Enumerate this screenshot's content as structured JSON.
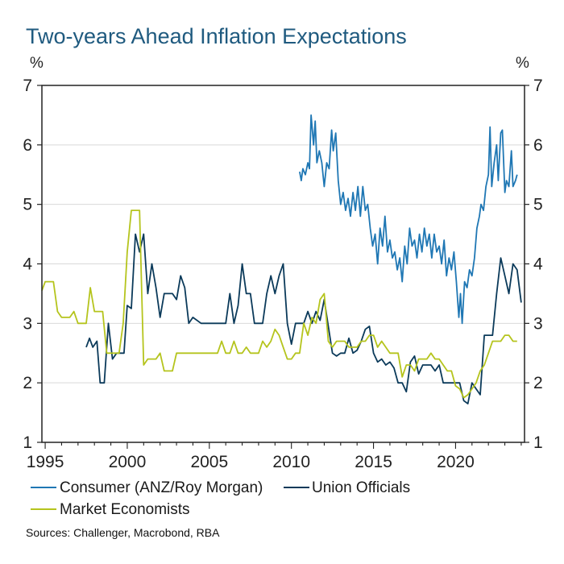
{
  "chart_data": {
    "type": "line",
    "title": "Two-years Ahead Inflation Expectations",
    "left_unit": "%",
    "right_unit": "%",
    "x_range": [
      1994.8,
      2024.2
    ],
    "y_range": [
      1,
      7
    ],
    "y_ticks": [
      1,
      2,
      3,
      4,
      5,
      6,
      7
    ],
    "x_ticks": [
      1995,
      2000,
      2005,
      2010,
      2015,
      2020
    ],
    "grid": true,
    "legend_position": "bottom",
    "source": "Sources: Challenger, Macrobond, RBA",
    "colors": {
      "Consumer (ANZ/Roy Morgan)": "#1f77b4",
      "Union Officials": "#0b3a5a",
      "Market Economists": "#b5c41d",
      "grid": "#d9d9d9",
      "axis": "#222222"
    },
    "series": [
      {
        "name": "Consumer (ANZ/Roy Morgan)",
        "points": [
          [
            2010.5,
            5.55
          ],
          [
            2010.6,
            5.4
          ],
          [
            2010.7,
            5.6
          ],
          [
            2010.85,
            5.5
          ],
          [
            2011.0,
            5.7
          ],
          [
            2011.1,
            5.6
          ],
          [
            2011.2,
            6.5
          ],
          [
            2011.35,
            6.0
          ],
          [
            2011.45,
            6.4
          ],
          [
            2011.55,
            5.7
          ],
          [
            2011.7,
            5.9
          ],
          [
            2011.85,
            5.7
          ],
          [
            2012.0,
            5.3
          ],
          [
            2012.15,
            5.7
          ],
          [
            2012.3,
            5.6
          ],
          [
            2012.45,
            6.25
          ],
          [
            2012.55,
            5.9
          ],
          [
            2012.7,
            6.2
          ],
          [
            2012.85,
            5.4
          ],
          [
            2013.0,
            5.0
          ],
          [
            2013.15,
            5.2
          ],
          [
            2013.3,
            4.9
          ],
          [
            2013.45,
            5.1
          ],
          [
            2013.6,
            4.8
          ],
          [
            2013.75,
            5.2
          ],
          [
            2013.9,
            4.9
          ],
          [
            2014.05,
            5.3
          ],
          [
            2014.2,
            4.8
          ],
          [
            2014.35,
            5.3
          ],
          [
            2014.5,
            4.9
          ],
          [
            2014.65,
            5.0
          ],
          [
            2014.8,
            4.6
          ],
          [
            2014.95,
            4.3
          ],
          [
            2015.1,
            4.5
          ],
          [
            2015.25,
            4.0
          ],
          [
            2015.4,
            4.6
          ],
          [
            2015.55,
            4.3
          ],
          [
            2015.7,
            4.8
          ],
          [
            2015.85,
            4.2
          ],
          [
            2016.0,
            4.4
          ],
          [
            2016.15,
            4.1
          ],
          [
            2016.3,
            4.2
          ],
          [
            2016.45,
            3.9
          ],
          [
            2016.6,
            4.1
          ],
          [
            2016.75,
            3.7
          ],
          [
            2016.9,
            4.3
          ],
          [
            2017.05,
            4.0
          ],
          [
            2017.2,
            4.6
          ],
          [
            2017.35,
            4.3
          ],
          [
            2017.5,
            4.4
          ],
          [
            2017.65,
            4.1
          ],
          [
            2017.8,
            4.5
          ],
          [
            2017.95,
            4.2
          ],
          [
            2018.1,
            4.6
          ],
          [
            2018.25,
            4.3
          ],
          [
            2018.4,
            4.5
          ],
          [
            2018.55,
            4.1
          ],
          [
            2018.7,
            4.5
          ],
          [
            2018.85,
            4.2
          ],
          [
            2019.0,
            4.3
          ],
          [
            2019.15,
            4.0
          ],
          [
            2019.3,
            4.4
          ],
          [
            2019.45,
            3.8
          ],
          [
            2019.6,
            4.1
          ],
          [
            2019.75,
            3.9
          ],
          [
            2019.9,
            4.2
          ],
          [
            2020.05,
            3.7
          ],
          [
            2020.2,
            3.1
          ],
          [
            2020.3,
            3.5
          ],
          [
            2020.4,
            3.0
          ],
          [
            2020.55,
            3.7
          ],
          [
            2020.7,
            3.6
          ],
          [
            2020.85,
            3.9
          ],
          [
            2021.0,
            3.8
          ],
          [
            2021.15,
            4.1
          ],
          [
            2021.3,
            4.6
          ],
          [
            2021.45,
            4.8
          ],
          [
            2021.55,
            5.0
          ],
          [
            2021.7,
            4.9
          ],
          [
            2021.85,
            5.3
          ],
          [
            2022.0,
            5.5
          ],
          [
            2022.1,
            6.3
          ],
          [
            2022.2,
            5.3
          ],
          [
            2022.35,
            5.7
          ],
          [
            2022.5,
            6.0
          ],
          [
            2022.6,
            5.4
          ],
          [
            2022.75,
            6.2
          ],
          [
            2022.85,
            6.25
          ],
          [
            2023.0,
            5.2
          ],
          [
            2023.1,
            5.4
          ],
          [
            2023.25,
            5.3
          ],
          [
            2023.4,
            5.9
          ],
          [
            2023.5,
            5.3
          ],
          [
            2023.65,
            5.4
          ],
          [
            2023.75,
            5.5
          ]
        ]
      },
      {
        "name": "Union Officials",
        "points": [
          [
            1997.5,
            2.6
          ],
          [
            1997.7,
            2.75
          ],
          [
            1997.9,
            2.6
          ],
          [
            1998.15,
            2.7
          ],
          [
            1998.35,
            2.0
          ],
          [
            1998.6,
            2.0
          ],
          [
            1998.85,
            3.0
          ],
          [
            1999.1,
            2.4
          ],
          [
            1999.35,
            2.5
          ],
          [
            1999.8,
            2.5
          ],
          [
            2000.0,
            3.3
          ],
          [
            2000.25,
            3.25
          ],
          [
            2000.5,
            4.5
          ],
          [
            2000.75,
            4.2
          ],
          [
            2001.0,
            4.5
          ],
          [
            2001.25,
            3.5
          ],
          [
            2001.5,
            4.0
          ],
          [
            2001.75,
            3.6
          ],
          [
            2002.0,
            3.1
          ],
          [
            2002.25,
            3.5
          ],
          [
            2002.75,
            3.5
          ],
          [
            2003.0,
            3.4
          ],
          [
            2003.25,
            3.8
          ],
          [
            2003.5,
            3.6
          ],
          [
            2003.75,
            3.0
          ],
          [
            2004.0,
            3.1
          ],
          [
            2004.5,
            3.0
          ],
          [
            2005.5,
            3.0
          ],
          [
            2006.0,
            3.0
          ],
          [
            2006.25,
            3.5
          ],
          [
            2006.5,
            3.0
          ],
          [
            2006.75,
            3.3
          ],
          [
            2007.0,
            4.0
          ],
          [
            2007.25,
            3.5
          ],
          [
            2007.5,
            3.5
          ],
          [
            2007.75,
            3.0
          ],
          [
            2008.25,
            3.0
          ],
          [
            2008.5,
            3.5
          ],
          [
            2008.75,
            3.8
          ],
          [
            2009.0,
            3.5
          ],
          [
            2009.25,
            3.8
          ],
          [
            2009.5,
            4.0
          ],
          [
            2009.75,
            3.0
          ],
          [
            2010.0,
            2.65
          ],
          [
            2010.25,
            3.0
          ],
          [
            2010.75,
            3.0
          ],
          [
            2011.0,
            3.2
          ],
          [
            2011.25,
            3.0
          ],
          [
            2011.5,
            3.2
          ],
          [
            2011.75,
            3.05
          ],
          [
            2012.0,
            3.4
          ],
          [
            2012.25,
            2.95
          ],
          [
            2012.5,
            2.5
          ],
          [
            2012.75,
            2.45
          ],
          [
            2013.0,
            2.5
          ],
          [
            2013.25,
            2.5
          ],
          [
            2013.5,
            2.75
          ],
          [
            2013.75,
            2.5
          ],
          [
            2014.0,
            2.55
          ],
          [
            2014.25,
            2.7
          ],
          [
            2014.5,
            2.9
          ],
          [
            2014.75,
            2.95
          ],
          [
            2015.0,
            2.5
          ],
          [
            2015.25,
            2.35
          ],
          [
            2015.5,
            2.4
          ],
          [
            2015.75,
            2.3
          ],
          [
            2016.0,
            2.35
          ],
          [
            2016.25,
            2.25
          ],
          [
            2016.5,
            2.0
          ],
          [
            2016.75,
            2.0
          ],
          [
            2017.0,
            1.85
          ],
          [
            2017.25,
            2.35
          ],
          [
            2017.5,
            2.45
          ],
          [
            2017.75,
            2.15
          ],
          [
            2018.0,
            2.3
          ],
          [
            2018.25,
            2.3
          ],
          [
            2018.5,
            2.3
          ],
          [
            2018.75,
            2.2
          ],
          [
            2019.0,
            2.3
          ],
          [
            2019.25,
            2.0
          ],
          [
            2019.5,
            2.0
          ],
          [
            2019.75,
            2.0
          ],
          [
            2020.0,
            2.0
          ],
          [
            2020.25,
            2.0
          ],
          [
            2020.5,
            1.7
          ],
          [
            2020.75,
            1.65
          ],
          [
            2021.0,
            2.0
          ],
          [
            2021.25,
            1.9
          ],
          [
            2021.5,
            1.8
          ],
          [
            2021.75,
            2.8
          ],
          [
            2022.0,
            2.8
          ],
          [
            2022.25,
            2.8
          ],
          [
            2022.5,
            3.5
          ],
          [
            2022.75,
            4.1
          ],
          [
            2023.0,
            3.8
          ],
          [
            2023.25,
            3.5
          ],
          [
            2023.5,
            4.0
          ],
          [
            2023.75,
            3.9
          ],
          [
            2024.0,
            3.35
          ]
        ]
      },
      {
        "name": "Market Economists",
        "points": [
          [
            1994.8,
            3.55
          ],
          [
            1995.0,
            3.7
          ],
          [
            1995.5,
            3.7
          ],
          [
            1995.75,
            3.2
          ],
          [
            1996.0,
            3.1
          ],
          [
            1996.5,
            3.1
          ],
          [
            1996.75,
            3.2
          ],
          [
            1997.0,
            3.0
          ],
          [
            1997.5,
            3.0
          ],
          [
            1997.75,
            3.6
          ],
          [
            1998.0,
            3.2
          ],
          [
            1998.5,
            3.2
          ],
          [
            1998.75,
            2.5
          ],
          [
            1999.25,
            2.5
          ],
          [
            1999.5,
            2.5
          ],
          [
            1999.75,
            3.0
          ],
          [
            2000.0,
            4.2
          ],
          [
            2000.25,
            4.9
          ],
          [
            2000.75,
            4.9
          ],
          [
            2001.0,
            2.3
          ],
          [
            2001.25,
            2.4
          ],
          [
            2001.75,
            2.4
          ],
          [
            2002.0,
            2.5
          ],
          [
            2002.25,
            2.2
          ],
          [
            2002.75,
            2.2
          ],
          [
            2003.0,
            2.5
          ],
          [
            2003.5,
            2.5
          ],
          [
            2004.0,
            2.5
          ],
          [
            2004.5,
            2.5
          ],
          [
            2005.0,
            2.5
          ],
          [
            2005.5,
            2.5
          ],
          [
            2005.75,
            2.7
          ],
          [
            2006.0,
            2.5
          ],
          [
            2006.25,
            2.5
          ],
          [
            2006.5,
            2.7
          ],
          [
            2006.75,
            2.5
          ],
          [
            2007.0,
            2.5
          ],
          [
            2007.25,
            2.6
          ],
          [
            2007.5,
            2.5
          ],
          [
            2008.0,
            2.5
          ],
          [
            2008.25,
            2.7
          ],
          [
            2008.5,
            2.6
          ],
          [
            2008.75,
            2.7
          ],
          [
            2009.0,
            2.9
          ],
          [
            2009.25,
            2.8
          ],
          [
            2009.5,
            2.6
          ],
          [
            2009.75,
            2.4
          ],
          [
            2010.0,
            2.4
          ],
          [
            2010.25,
            2.5
          ],
          [
            2010.5,
            2.5
          ],
          [
            2010.75,
            3.0
          ],
          [
            2011.0,
            2.8
          ],
          [
            2011.25,
            3.1
          ],
          [
            2011.5,
            3.0
          ],
          [
            2011.75,
            3.4
          ],
          [
            2012.0,
            3.5
          ],
          [
            2012.25,
            2.7
          ],
          [
            2012.5,
            2.6
          ],
          [
            2012.75,
            2.7
          ],
          [
            2013.0,
            2.7
          ],
          [
            2013.25,
            2.7
          ],
          [
            2013.5,
            2.6
          ],
          [
            2013.75,
            2.6
          ],
          [
            2014.0,
            2.6
          ],
          [
            2014.25,
            2.7
          ],
          [
            2014.5,
            2.7
          ],
          [
            2014.75,
            2.8
          ],
          [
            2015.0,
            2.8
          ],
          [
            2015.25,
            2.6
          ],
          [
            2015.5,
            2.7
          ],
          [
            2015.75,
            2.6
          ],
          [
            2016.0,
            2.5
          ],
          [
            2016.5,
            2.5
          ],
          [
            2016.75,
            2.1
          ],
          [
            2017.0,
            2.3
          ],
          [
            2017.25,
            2.3
          ],
          [
            2017.5,
            2.2
          ],
          [
            2017.75,
            2.4
          ],
          [
            2018.0,
            2.4
          ],
          [
            2018.25,
            2.4
          ],
          [
            2018.5,
            2.5
          ],
          [
            2018.75,
            2.4
          ],
          [
            2019.0,
            2.4
          ],
          [
            2019.25,
            2.3
          ],
          [
            2019.5,
            2.2
          ],
          [
            2019.75,
            2.2
          ],
          [
            2020.0,
            1.95
          ],
          [
            2020.25,
            1.9
          ],
          [
            2020.5,
            1.75
          ],
          [
            2020.75,
            1.8
          ],
          [
            2021.0,
            1.9
          ],
          [
            2021.25,
            2.0
          ],
          [
            2021.5,
            2.2
          ],
          [
            2021.75,
            2.3
          ],
          [
            2022.0,
            2.5
          ],
          [
            2022.25,
            2.7
          ],
          [
            2022.5,
            2.7
          ],
          [
            2022.75,
            2.7
          ],
          [
            2023.0,
            2.8
          ],
          [
            2023.25,
            2.8
          ],
          [
            2023.5,
            2.7
          ],
          [
            2023.75,
            2.7
          ]
        ]
      }
    ]
  }
}
